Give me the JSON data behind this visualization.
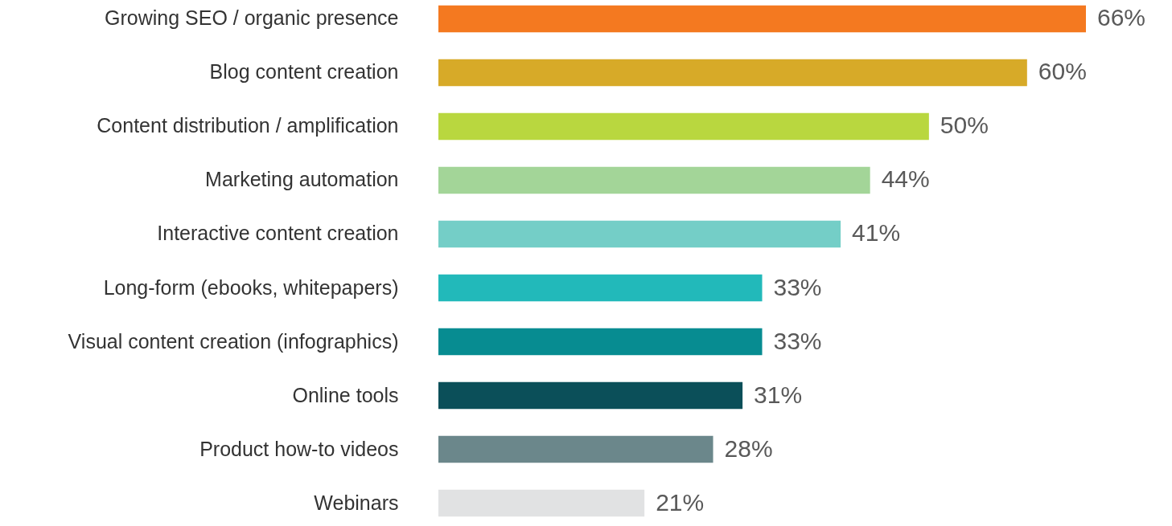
{
  "chart_data": {
    "type": "bar",
    "orientation": "horizontal",
    "categories": [
      "Growing SEO / organic presence",
      "Blog content creation",
      "Content distribution / amplification",
      "Marketing automation",
      "Interactive content creation",
      "Long-form (ebooks, whitepapers)",
      "Visual content creation (infographics)",
      "Online tools",
      "Product how-to videos",
      "Webinars"
    ],
    "values": [
      66,
      60,
      50,
      44,
      41,
      33,
      33,
      31,
      28,
      21
    ],
    "value_labels": [
      "66%",
      "60%",
      "50%",
      "44%",
      "41%",
      "33%",
      "33%",
      "31%",
      "28%",
      "21%"
    ],
    "colors": [
      "#f47920",
      "#d7aa28",
      "#b9d73f",
      "#a3d598",
      "#74cec7",
      "#22b9ba",
      "#078c91",
      "#0b4f59",
      "#6b878b",
      "#e1e2e3"
    ]
  }
}
